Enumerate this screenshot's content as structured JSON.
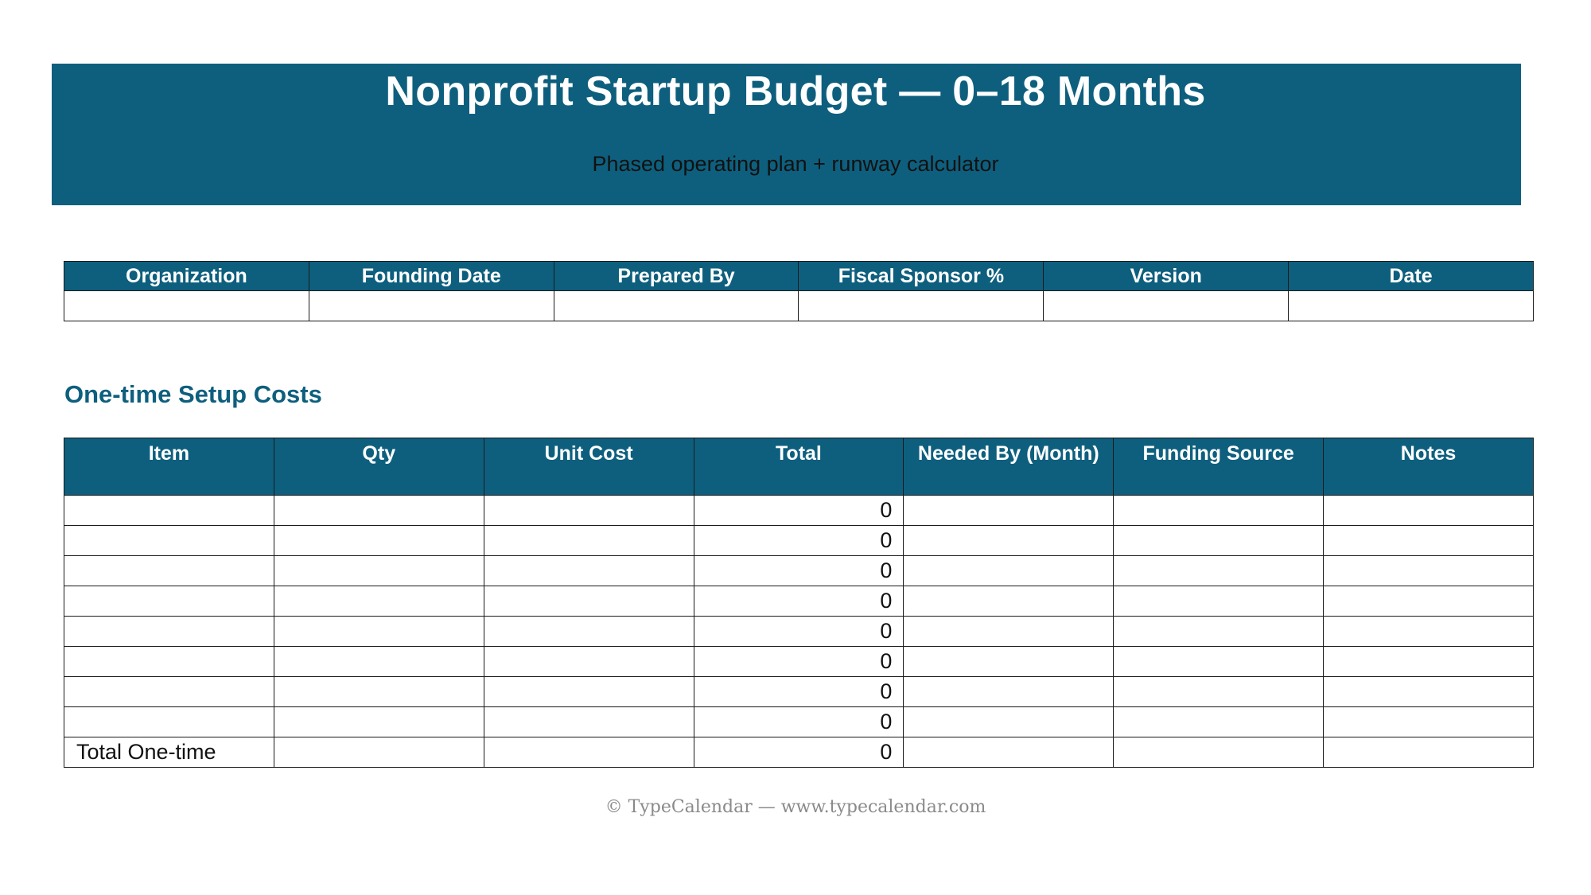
{
  "header": {
    "title": "Nonprofit Startup Budget — 0–18 Months",
    "subtitle": "Phased operating plan + runway calculator",
    "accent_color": "#0e5f7e"
  },
  "meta_table": {
    "columns": [
      "Organization",
      "Founding Date",
      "Prepared By",
      "Fiscal Sponsor %",
      "Version",
      "Date"
    ],
    "values": [
      "",
      "",
      "",
      "",
      "",
      ""
    ]
  },
  "setup_costs": {
    "title": "One-time Setup Costs",
    "columns": [
      "Item",
      "Qty",
      "Unit Cost",
      "Total",
      "Needed By (Month)",
      "Funding Source",
      "Notes"
    ],
    "rows": [
      {
        "item": "",
        "qty": "",
        "unit_cost": "",
        "total": "0",
        "needed_by": "",
        "funding_source": "",
        "notes": ""
      },
      {
        "item": "",
        "qty": "",
        "unit_cost": "",
        "total": "0",
        "needed_by": "",
        "funding_source": "",
        "notes": ""
      },
      {
        "item": "",
        "qty": "",
        "unit_cost": "",
        "total": "0",
        "needed_by": "",
        "funding_source": "",
        "notes": ""
      },
      {
        "item": "",
        "qty": "",
        "unit_cost": "",
        "total": "0",
        "needed_by": "",
        "funding_source": "",
        "notes": ""
      },
      {
        "item": "",
        "qty": "",
        "unit_cost": "",
        "total": "0",
        "needed_by": "",
        "funding_source": "",
        "notes": ""
      },
      {
        "item": "",
        "qty": "",
        "unit_cost": "",
        "total": "0",
        "needed_by": "",
        "funding_source": "",
        "notes": ""
      },
      {
        "item": "",
        "qty": "",
        "unit_cost": "",
        "total": "0",
        "needed_by": "",
        "funding_source": "",
        "notes": ""
      },
      {
        "item": "",
        "qty": "",
        "unit_cost": "",
        "total": "0",
        "needed_by": "",
        "funding_source": "",
        "notes": ""
      }
    ],
    "total_row": {
      "label": "Total One-time",
      "total": "0"
    }
  },
  "footer": {
    "text": "© TypeCalendar — www.typecalendar.com"
  }
}
